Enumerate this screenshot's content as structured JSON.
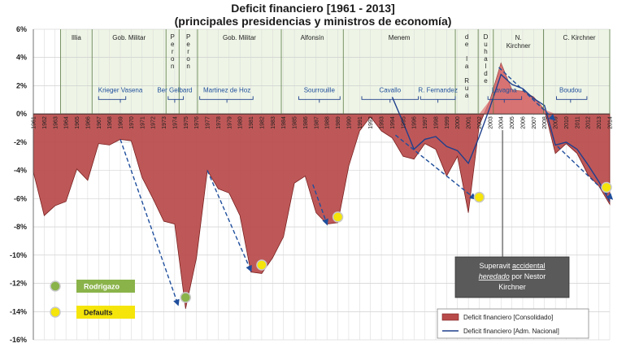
{
  "chart_data": {
    "type": "area",
    "title": "Deficit financiero [1961 - 2013]",
    "subtitle": "(principales presidencias y ministros de economía)",
    "ylim": [
      -16,
      6
    ],
    "yticks": [
      6,
      4,
      2,
      0,
      -2,
      -4,
      -6,
      -8,
      -10,
      -12,
      -14,
      -16
    ],
    "ytick_labels": [
      "6%",
      "4%",
      "2%",
      "0%",
      "-2%",
      "-4%",
      "-6%",
      "-8%",
      "-10%",
      "-12%",
      "-14%",
      "-16%"
    ],
    "x": [
      1961,
      1962,
      1963,
      1964,
      1965,
      1966,
      1967,
      1968,
      1969,
      1970,
      1971,
      1972,
      1973,
      1974,
      1975,
      1976,
      1977,
      1978,
      1979,
      1980,
      1981,
      1982,
      1983,
      1984,
      1985,
      1986,
      1987,
      1988,
      1989,
      1990,
      1991,
      1992,
      1993,
      1994,
      1995,
      1996,
      1997,
      1998,
      1999,
      2000,
      2001,
      2002,
      2003,
      2004,
      2005,
      2006,
      2007,
      2008,
      2009,
      2010,
      2011,
      2012,
      2013,
      2014
    ],
    "series": [
      {
        "name": "Deficit financiero [Consolidado]",
        "values": [
          -4.1,
          -7.2,
          -6.5,
          -6.2,
          -3.9,
          -4.7,
          -2.1,
          -2.2,
          -1.8,
          -1.9,
          -4.5,
          -6.0,
          -7.6,
          -7.8,
          -13.8,
          -10.2,
          -4.0,
          -5.3,
          -5.6,
          -7.2,
          -11.2,
          -11.3,
          -10.2,
          -8.7,
          -4.9,
          -4.4,
          -7.0,
          -7.8,
          -7.7,
          -3.7,
          -1.2,
          -0.2,
          -1.2,
          -1.7,
          -3.0,
          -3.2,
          -2.1,
          -2.5,
          -4.4,
          -3.0,
          -7.0,
          -0.8,
          1.0,
          3.6,
          1.7,
          1.6,
          1.2,
          0.3,
          -2.8,
          -2.1,
          -2.8,
          -4.3,
          -5.1,
          -6.4
        ]
      },
      {
        "name": "Deficit financiero [Adm. Nacional]",
        "values": [
          null,
          null,
          null,
          null,
          null,
          null,
          null,
          null,
          null,
          null,
          null,
          null,
          null,
          null,
          null,
          null,
          null,
          null,
          null,
          null,
          null,
          null,
          null,
          null,
          null,
          null,
          null,
          null,
          null,
          null,
          null,
          null,
          null,
          1.2,
          -0.6,
          -2.5,
          -1.8,
          -1.6,
          -2.3,
          -2.6,
          -3.5,
          -1.6,
          0.5,
          2.8,
          2.1,
          1.8,
          1.1,
          0.6,
          -2.2,
          -2.0,
          -2.5,
          -3.6,
          -4.8,
          -6.2
        ]
      }
    ],
    "eras": [
      {
        "label": "Illia",
        "start": 1963.5,
        "end": 1966.4
      },
      {
        "label": "Gob. Militar",
        "start": 1966.4,
        "end": 1973.2
      },
      {
        "label": "Peron",
        "start": 1973.2,
        "end": 1974.4,
        "vertical": true
      },
      {
        "label": "Peron",
        "start": 1974.4,
        "end": 1976.1,
        "vertical": true
      },
      {
        "label": "Gob. Militar",
        "start": 1976.1,
        "end": 1983.8
      },
      {
        "label": "Alfonsín",
        "start": 1983.8,
        "end": 1989.5
      },
      {
        "label": "Menem",
        "start": 1989.5,
        "end": 1999.8
      },
      {
        "label": "de la Rua",
        "start": 1999.8,
        "end": 2001.9,
        "vertical": true
      },
      {
        "label": "Duhalde",
        "start": 2001.9,
        "end": 2003.3,
        "vertical": true
      },
      {
        "label": "N. Kirchner",
        "start": 2003.3,
        "end": 2007.9
      },
      {
        "label": "C. Kirchner",
        "start": 2007.9,
        "end": 2014.5
      }
    ],
    "ministers": [
      {
        "label": "Krieger Vasena",
        "start": 1967,
        "end": 1969.5,
        "label_x": 1969
      },
      {
        "label": "Ber Gelbard",
        "start": 1973.4,
        "end": 1974.8,
        "label_x": 1974
      },
      {
        "label": "Martinez de Hoz",
        "start": 1976.3,
        "end": 1981.2,
        "label_x": 1978.8
      },
      {
        "label": "Sourrouille",
        "start": 1985.4,
        "end": 1989.2,
        "label_x": 1987.3
      },
      {
        "label": "Cavallo",
        "start": 1991.2,
        "end": 1996.4,
        "label_x": 1993.8
      },
      {
        "label": "R. Fernandez",
        "start": 1996.6,
        "end": 1999.8,
        "label_x": 1998.2
      },
      {
        "label": "Lavagna",
        "start": 2002.8,
        "end": 2005.9,
        "label_x": 2004.3
      },
      {
        "label": "Boudou",
        "start": 2009.1,
        "end": 2011.9,
        "label_x": 2010.4
      }
    ],
    "annotations": {
      "callout": [
        "Superavit ",
        "accidental",
        " ",
        "heredado",
        " por Nestor",
        "Kirchner"
      ],
      "markers_legend": [
        {
          "label": "Rodrigazo",
          "color": "#8ab34a"
        },
        {
          "label": "Defaults",
          "color": "#f5e50a"
        }
      ],
      "rodrigazo_points": [
        {
          "x": 1975,
          "y": -13
        }
      ],
      "default_points": [
        {
          "x": 1982,
          "y": -10.7
        },
        {
          "x": 1989,
          "y": -7.3
        },
        {
          "x": 2002,
          "y": -5.9
        },
        {
          "x": 2015,
          "y": -5.2
        }
      ],
      "trend_arrows": [
        {
          "from": [
            1969,
            -1.8
          ],
          "to": [
            1974.3,
            -13.5
          ]
        },
        {
          "from": [
            1977,
            -4.0
          ],
          "to": [
            1981,
            -11.1
          ]
        },
        {
          "from": [
            1986.7,
            -5.0
          ],
          "to": [
            1988,
            -7.8
          ]
        },
        {
          "from": [
            1994.3,
            -1.5
          ],
          "to": [
            2001.6,
            -6.0
          ]
        },
        {
          "from": [
            2003.8,
            3.3
          ],
          "to": [
            2008.9,
            -0.4
          ]
        },
        {
          "from": [
            2009.2,
            -2.3
          ],
          "to": [
            2014.2,
            -6.0
          ]
        }
      ]
    },
    "legend_placement": "bottom-right",
    "grid": true
  }
}
